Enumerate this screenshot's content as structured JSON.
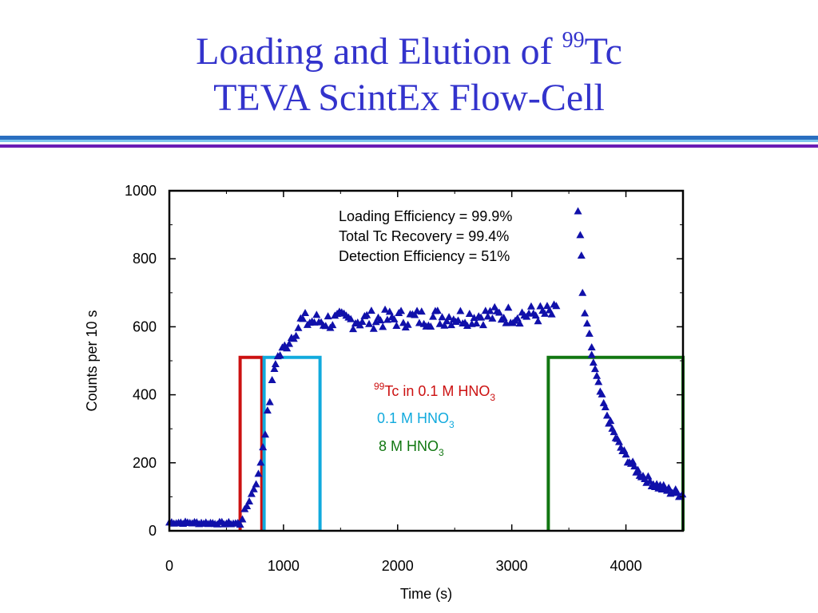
{
  "slide": {
    "title_line1_pre": "Loading and Elution of ",
    "title_line1_sup": "99",
    "title_line1_post": "Tc",
    "title_line2": "TEVA ScintEx Flow-Cell",
    "title_color": "#3333cc"
  },
  "annotations": [
    "Loading Efficiency = 99.9%",
    "Total Tc Recovery = 99.4%",
    "Detection Efficiency = 51%"
  ],
  "legend": [
    {
      "sup": "99",
      "text": "Tc in 0.1 M HNO",
      "sub": "3",
      "color": "#cc1111"
    },
    {
      "sup": "",
      "text": "0.1 M HNO",
      "sub": "3",
      "color": "#11aadd"
    },
    {
      "sup": "",
      "text": "8 M HNO",
      "sub": "3",
      "color": "#117711"
    }
  ],
  "chart_data": {
    "type": "scatter",
    "title": "",
    "xlabel": "Time (s)",
    "ylabel": "Counts per 10 s",
    "xlim": [
      0,
      4500
    ],
    "ylim": [
      0,
      1000
    ],
    "xticks": [
      0,
      1000,
      2000,
      3000,
      4000
    ],
    "yticks": [
      0,
      200,
      400,
      600,
      800,
      1000
    ],
    "marker": "triangle",
    "marker_color": "#1010aa",
    "regions": [
      {
        "name": "99Tc in 0.1 M HNO3",
        "x_start": 620,
        "x_end": 810,
        "y_top": 510,
        "color": "#cc1111"
      },
      {
        "name": "0.1 M HNO3",
        "x_start": 830,
        "x_end": 1320,
        "y_top": 510,
        "color": "#11aadd"
      },
      {
        "name": "8 M HNO3",
        "x_start": 3320,
        "x_end": 4500,
        "y_top": 510,
        "color": "#117711"
      }
    ],
    "segments": [
      {
        "x_start": 0,
        "x_end": 620,
        "y_start": 25,
        "y_end": 22,
        "noise": 4
      },
      {
        "x_start": 620,
        "x_end": 780,
        "y_start": 22,
        "y_end": 160,
        "noise": 8
      },
      {
        "x_start": 780,
        "x_end": 930,
        "y_start": 160,
        "y_end": 500,
        "noise": 15
      },
      {
        "x_start": 930,
        "x_end": 1150,
        "y_start": 500,
        "y_end": 610,
        "noise": 18
      },
      {
        "x_start": 1150,
        "x_end": 3400,
        "y_start": 615,
        "y_end": 640,
        "noise": 28
      }
    ],
    "peak": [
      [
        3580,
        940
      ],
      [
        3600,
        870
      ],
      [
        3610,
        810
      ],
      [
        3620,
        700
      ],
      [
        3640,
        640
      ],
      [
        3660,
        610
      ],
      [
        3680,
        580
      ],
      [
        3700,
        540
      ]
    ],
    "decay": {
      "x_start": 3700,
      "x_end": 4500,
      "y_start": 520,
      "y_end": 90,
      "noise": 12
    }
  }
}
